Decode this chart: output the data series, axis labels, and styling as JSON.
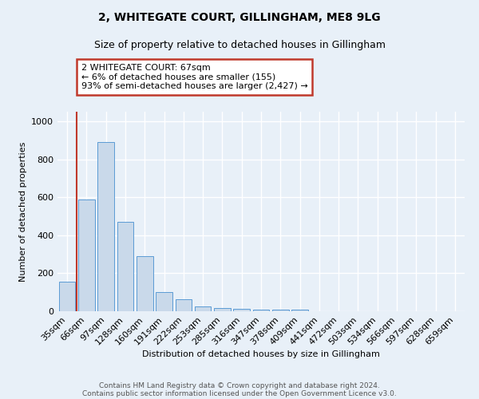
{
  "title1": "2, WHITEGATE COURT, GILLINGHAM, ME8 9LG",
  "title2": "Size of property relative to detached houses in Gillingham",
  "xlabel": "Distribution of detached houses by size in Gillingham",
  "ylabel": "Number of detached properties",
  "footer1": "Contains HM Land Registry data © Crown copyright and database right 2024.",
  "footer2": "Contains public sector information licensed under the Open Government Licence v3.0.",
  "bar_labels": [
    "35sqm",
    "66sqm",
    "97sqm",
    "128sqm",
    "160sqm",
    "191sqm",
    "222sqm",
    "253sqm",
    "285sqm",
    "316sqm",
    "347sqm",
    "378sqm",
    "409sqm",
    "441sqm",
    "472sqm",
    "503sqm",
    "534sqm",
    "566sqm",
    "597sqm",
    "628sqm",
    "659sqm"
  ],
  "bar_values": [
    155,
    590,
    890,
    470,
    290,
    100,
    62,
    27,
    18,
    13,
    10,
    10,
    10,
    0,
    0,
    0,
    0,
    0,
    0,
    0,
    0
  ],
  "bar_color": "#c9d9ea",
  "bar_edge_color": "#5b9bd5",
  "background_color": "#e8f0f8",
  "vline_x_index": 1,
  "vline_color": "#c0392b",
  "annotation_text": "2 WHITEGATE COURT: 67sqm\n← 6% of detached houses are smaller (155)\n93% of semi-detached houses are larger (2,427) →",
  "annotation_box_color": "white",
  "annotation_box_edge": "#c0392b",
  "ylim": [
    0,
    1050
  ],
  "yticks": [
    0,
    200,
    400,
    600,
    800,
    1000
  ],
  "title1_fontsize": 10,
  "title2_fontsize": 9,
  "xlabel_fontsize": 8,
  "ylabel_fontsize": 8,
  "tick_fontsize": 8,
  "annotation_fontsize": 8
}
